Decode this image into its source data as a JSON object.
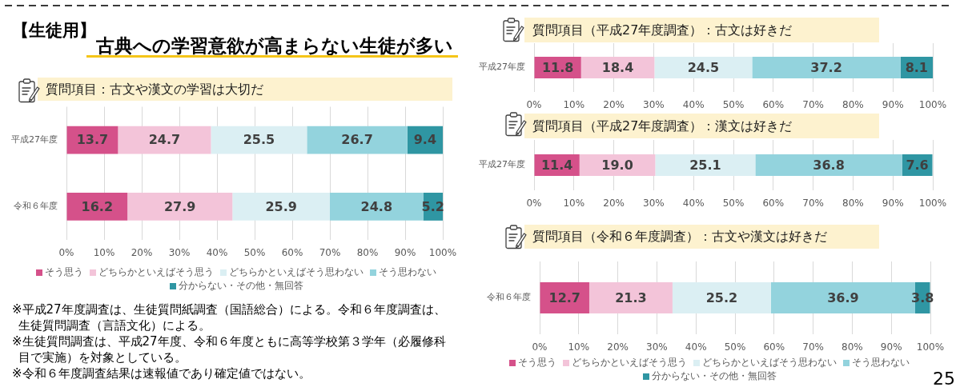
{
  "chart_data": [
    {
      "type": "bar",
      "orientation": "horizontal",
      "stacked": true,
      "title": "質問項目：古文や漢文の学習は大切だ",
      "categories": [
        "平成27年度",
        "令和６年度"
      ],
      "series": [
        {
          "name": "そう思う",
          "color": "#d5518a",
          "values": [
            13.7,
            16.2
          ]
        },
        {
          "name": "どちらかといえばそう思う",
          "color": "#f3c4d9",
          "values": [
            24.7,
            27.9
          ]
        },
        {
          "name": "どちらかといえばそう思わない",
          "color": "#dbeff3",
          "values": [
            25.5,
            25.9
          ]
        },
        {
          "name": "そう思わない",
          "color": "#93d3dd",
          "values": [
            26.7,
            24.8
          ]
        },
        {
          "name": "分からない・その他・無回答",
          "color": "#2f96a3",
          "values": [
            9.4,
            5.2
          ]
        }
      ],
      "xlim": [
        0,
        100
      ],
      "xticks": [
        {
          "value": 0,
          "label": "0%"
        },
        {
          "value": 10,
          "label": "10%"
        },
        {
          "value": 20,
          "label": "20%"
        },
        {
          "value": 30,
          "label": "30%"
        },
        {
          "value": 40,
          "label": "40%"
        },
        {
          "value": 50,
          "label": "50%"
        },
        {
          "value": 60,
          "label": "60%"
        },
        {
          "value": 70,
          "label": "70%"
        },
        {
          "value": 80,
          "label": "80%"
        },
        {
          "value": 90,
          "label": "90%"
        },
        {
          "value": 100,
          "label": "100%"
        }
      ],
      "grid": "x",
      "legend": "bottom",
      "data_labels": true,
      "annotations": [
        "【生徒用】",
        "古典への学習意欲が高まらない生徒が多い",
        "※平成27年度調査は、生徒質問紙調査（国語総合）による。令和６年度調査は、生徒質問調査（言語文化）による。",
        "※生徒質問調査は、平成27年度、令和６年度ともに高等学校第３学年（必履修科目で実施）を対象としている。",
        "※令和６年度調査結果は速報値であり確定値ではない。"
      ]
    },
    {
      "type": "bar",
      "orientation": "horizontal",
      "stacked": true,
      "title": "質問項目（平成27年度調査）：古文は好きだ",
      "categories": [
        "平成27年度"
      ],
      "series": [
        {
          "color": "#d5518a",
          "values": [
            11.8
          ]
        },
        {
          "color": "#f3c4d9",
          "values": [
            18.4
          ]
        },
        {
          "color": "#dbeff3",
          "values": [
            24.5
          ]
        },
        {
          "color": "#93d3dd",
          "values": [
            37.2
          ]
        },
        {
          "color": "#2f96a3",
          "values": [
            8.1
          ]
        }
      ],
      "xlim": [
        0,
        100
      ],
      "xticks": [
        {
          "value": 0,
          "label": "0%"
        },
        {
          "value": 10,
          "label": "10%"
        },
        {
          "value": 20,
          "label": "20%"
        },
        {
          "value": 30,
          "label": "30%"
        },
        {
          "value": 40,
          "label": "40%"
        },
        {
          "value": 50,
          "label": "50%"
        },
        {
          "value": 60,
          "label": "60%"
        },
        {
          "value": 70,
          "label": "70%"
        },
        {
          "value": 80,
          "label": "80%"
        },
        {
          "value": 90,
          "label": "90%"
        },
        {
          "value": 100,
          "label": "100%"
        }
      ],
      "grid": "x",
      "data_labels": true
    },
    {
      "type": "bar",
      "orientation": "horizontal",
      "stacked": true,
      "title": "質問項目（平成27年度調査）：漢文は好きだ",
      "categories": [
        "平成27年度"
      ],
      "series": [
        {
          "color": "#d5518a",
          "values": [
            11.4
          ]
        },
        {
          "color": "#f3c4d9",
          "values": [
            19.0
          ],
          "value_labels": [
            "19.0"
          ]
        },
        {
          "color": "#dbeff3",
          "values": [
            25.1
          ]
        },
        {
          "color": "#93d3dd",
          "values": [
            36.8
          ]
        },
        {
          "color": "#2f96a3",
          "values": [
            7.6
          ]
        }
      ],
      "xlim": [
        0,
        100
      ],
      "xticks": [
        {
          "value": 0,
          "label": "0%"
        },
        {
          "value": 10,
          "label": "10%"
        },
        {
          "value": 20,
          "label": "20%"
        },
        {
          "value": 30,
          "label": "30%"
        },
        {
          "value": 40,
          "label": "40%"
        },
        {
          "value": 50,
          "label": "50%"
        },
        {
          "value": 60,
          "label": "60%"
        },
        {
          "value": 70,
          "label": "70%"
        },
        {
          "value": 80,
          "label": "80%"
        },
        {
          "value": 90,
          "label": "90%"
        },
        {
          "value": 100,
          "label": "100%"
        }
      ],
      "grid": "x",
      "data_labels": true
    },
    {
      "type": "bar",
      "orientation": "horizontal",
      "stacked": true,
      "title": "質問項目（令和６年度調査）：古文や漢文は好きだ",
      "categories": [
        "令和６年度"
      ],
      "series": [
        {
          "name": "そう思う",
          "color": "#d5518a",
          "values": [
            12.7
          ]
        },
        {
          "name": "どちらかといえばそう思う",
          "color": "#f3c4d9",
          "values": [
            21.3
          ]
        },
        {
          "name": "どちらかといえばそう思わない",
          "color": "#dbeff3",
          "values": [
            25.2
          ]
        },
        {
          "name": "そう思わない",
          "color": "#93d3dd",
          "values": [
            36.9
          ]
        },
        {
          "name": "分からない・その他・無回答",
          "color": "#2f96a3",
          "values": [
            3.8
          ]
        }
      ],
      "xlim": [
        0,
        100
      ],
      "xticks": [
        {
          "value": 0,
          "label": "0%"
        },
        {
          "value": 10,
          "label": "10%"
        },
        {
          "value": 20,
          "label": "20%"
        },
        {
          "value": 30,
          "label": "30%"
        },
        {
          "value": 40,
          "label": "40%"
        },
        {
          "value": 50,
          "label": "50%"
        },
        {
          "value": 60,
          "label": "60%"
        },
        {
          "value": 70,
          "label": "70%"
        },
        {
          "value": 80,
          "label": "80%"
        },
        {
          "value": 90,
          "label": "90%"
        },
        {
          "value": 100,
          "label": "100%"
        }
      ],
      "grid": "x",
      "legend": "bottom",
      "data_labels": true,
      "annotations": [
        "25"
      ]
    }
  ]
}
